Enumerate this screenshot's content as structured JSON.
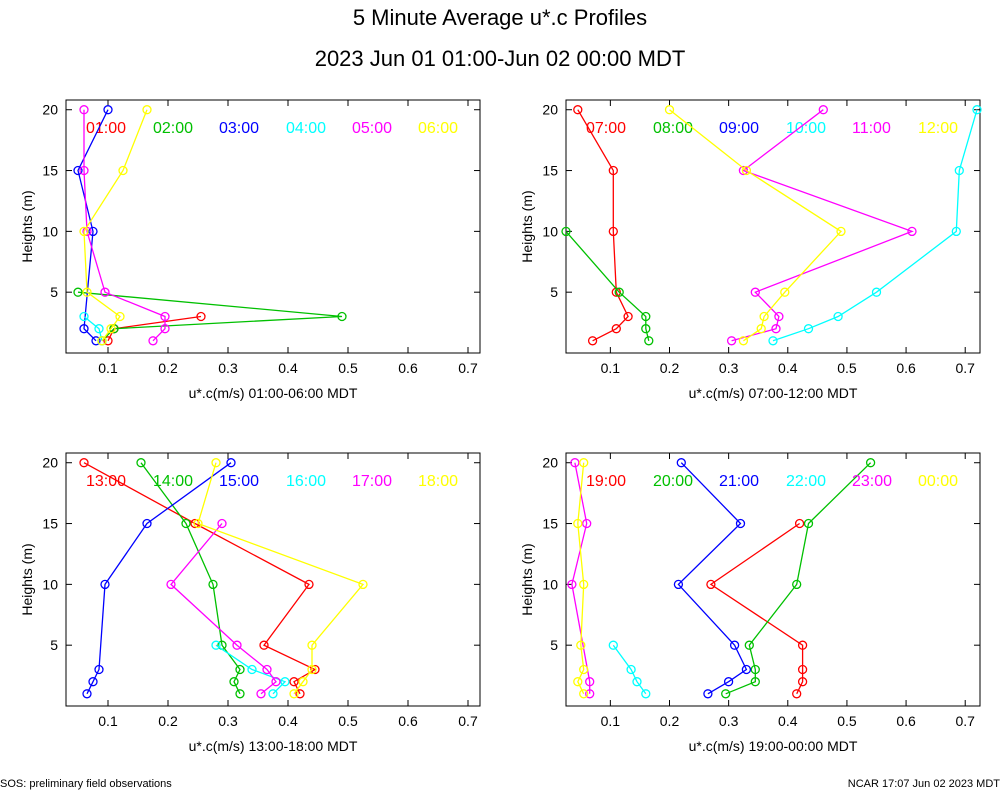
{
  "title": "5 Minute Average u*.c Profiles",
  "subtitle": "2023 Jun 01 01:00-Jun 02 00:00 MDT",
  "footer": {
    "left": "SOS: preliminary field observations",
    "right": "NCAR 17:07 Jun 02 2023 MDT"
  },
  "chart_data": [
    {
      "type": "line",
      "title": "",
      "xlabel": "u*.c(m/s) 01:00-06:00 MDT",
      "ylabel": "Heights (m)",
      "xlim": [
        0.03,
        0.72
      ],
      "ylim": [
        0,
        20.8
      ],
      "xticks": [
        0.1,
        0.2,
        0.3,
        0.4,
        0.5,
        0.6,
        0.7
      ],
      "yticks": [
        5,
        10,
        15,
        20
      ],
      "heights": [
        1,
        2,
        3,
        5,
        10,
        15,
        20
      ],
      "series": [
        {
          "name": "01:00",
          "color": "#ff0000",
          "values": [
            0.1,
            0.11,
            0.255,
            null,
            null,
            null,
            null
          ]
        },
        {
          "name": "02:00",
          "color": "#00c000",
          "values": [
            0.09,
            0.11,
            0.49,
            0.05,
            null,
            null,
            null
          ]
        },
        {
          "name": "03:00",
          "color": "#0000ff",
          "values": [
            0.08,
            0.06,
            null,
            null,
            0.075,
            0.05,
            0.1
          ]
        },
        {
          "name": "04:00",
          "color": "#00ffff",
          "values": [
            0.09,
            0.085,
            0.06,
            null,
            null,
            null,
            null
          ]
        },
        {
          "name": "05:00",
          "color": "#ff00ff",
          "values": [
            0.175,
            0.195,
            0.195,
            0.095,
            0.065,
            0.06,
            0.06
          ]
        },
        {
          "name": "06:00",
          "color": "#ffff00",
          "values": [
            0.09,
            0.105,
            0.12,
            0.065,
            0.06,
            0.125,
            0.165
          ]
        }
      ]
    },
    {
      "type": "line",
      "title": "",
      "xlabel": "u*.c(m/s) 07:00-12:00 MDT",
      "ylabel": "Heights (m)",
      "xlim": [
        0.025,
        0.725
      ],
      "ylim": [
        0,
        20.8
      ],
      "xticks": [
        0.1,
        0.2,
        0.3,
        0.4,
        0.5,
        0.6,
        0.7
      ],
      "yticks": [
        5,
        10,
        15,
        20
      ],
      "heights": [
        1,
        2,
        3,
        5,
        10,
        15,
        20
      ],
      "series": [
        {
          "name": "07:00",
          "color": "#ff0000",
          "values": [
            0.07,
            0.11,
            0.13,
            0.11,
            0.105,
            0.105,
            0.045
          ]
        },
        {
          "name": "08:00",
          "color": "#00c000",
          "values": [
            0.165,
            0.16,
            0.16,
            0.115,
            0.025,
            null,
            null
          ]
        },
        {
          "name": "09:00",
          "color": "#0000ff",
          "values": [
            null,
            null,
            null,
            null,
            null,
            null,
            null
          ]
        },
        {
          "name": "10:00",
          "color": "#00ffff",
          "values": [
            0.375,
            0.435,
            0.485,
            0.55,
            0.685,
            0.69,
            0.72
          ]
        },
        {
          "name": "11:00",
          "color": "#ff00ff",
          "values": [
            0.305,
            0.38,
            0.385,
            0.345,
            0.61,
            0.325,
            0.46
          ]
        },
        {
          "name": "12:00",
          "color": "#ffff00",
          "values": [
            0.325,
            0.355,
            0.36,
            0.395,
            0.49,
            0.33,
            0.2
          ]
        }
      ]
    },
    {
      "type": "line",
      "title": "",
      "xlabel": "u*.c(m/s) 13:00-18:00 MDT",
      "ylabel": "Heights (m)",
      "xlim": [
        0.03,
        0.72
      ],
      "ylim": [
        0,
        20.8
      ],
      "xticks": [
        0.1,
        0.2,
        0.3,
        0.4,
        0.5,
        0.6,
        0.7
      ],
      "yticks": [
        5,
        10,
        15,
        20
      ],
      "heights": [
        1,
        2,
        3,
        5,
        10,
        15,
        20
      ],
      "series": [
        {
          "name": "13:00",
          "color": "#ff0000",
          "values": [
            0.42,
            0.41,
            0.445,
            0.36,
            0.435,
            0.245,
            0.06
          ]
        },
        {
          "name": "14:00",
          "color": "#00c000",
          "values": [
            0.32,
            0.31,
            0.32,
            0.29,
            0.275,
            0.23,
            0.155
          ]
        },
        {
          "name": "15:00",
          "color": "#0000ff",
          "values": [
            0.065,
            0.075,
            0.085,
            null,
            0.095,
            0.165,
            0.305
          ]
        },
        {
          "name": "16:00",
          "color": "#00ffff",
          "values": [
            0.375,
            0.395,
            0.34,
            0.28,
            null,
            null,
            null
          ]
        },
        {
          "name": "17:00",
          "color": "#ff00ff",
          "values": [
            0.355,
            0.38,
            0.365,
            0.315,
            0.205,
            0.29,
            null
          ]
        },
        {
          "name": "18:00",
          "color": "#ffff00",
          "values": [
            0.41,
            0.425,
            0.44,
            0.44,
            0.525,
            0.25,
            0.28
          ]
        }
      ]
    },
    {
      "type": "line",
      "title": "",
      "xlabel": "u*.c(m/s) 19:00-00:00 MDT",
      "ylabel": "Heights (m)",
      "xlim": [
        0.025,
        0.725
      ],
      "ylim": [
        0,
        20.8
      ],
      "xticks": [
        0.1,
        0.2,
        0.3,
        0.4,
        0.5,
        0.6,
        0.7
      ],
      "yticks": [
        5,
        10,
        15,
        20
      ],
      "heights": [
        1,
        2,
        3,
        5,
        10,
        15,
        20
      ],
      "series": [
        {
          "name": "19:00",
          "color": "#ff0000",
          "values": [
            0.415,
            0.425,
            0.425,
            0.425,
            0.27,
            0.42,
            null
          ]
        },
        {
          "name": "20:00",
          "color": "#00c000",
          "values": [
            0.295,
            0.345,
            0.345,
            0.335,
            0.415,
            0.435,
            0.54
          ]
        },
        {
          "name": "21:00",
          "color": "#0000ff",
          "values": [
            0.265,
            0.3,
            0.33,
            0.31,
            0.215,
            0.32,
            0.22
          ]
        },
        {
          "name": "22:00",
          "color": "#00ffff",
          "values": [
            0.16,
            0.145,
            0.135,
            0.105,
            null,
            null,
            null
          ]
        },
        {
          "name": "23:00",
          "color": "#ff00ff",
          "values": [
            0.065,
            0.065,
            null,
            null,
            0.035,
            0.06,
            0.04
          ]
        },
        {
          "name": "00:00",
          "color": "#ffff00",
          "values": [
            0.055,
            0.045,
            0.055,
            0.05,
            0.055,
            0.045,
            0.055
          ]
        }
      ]
    }
  ]
}
